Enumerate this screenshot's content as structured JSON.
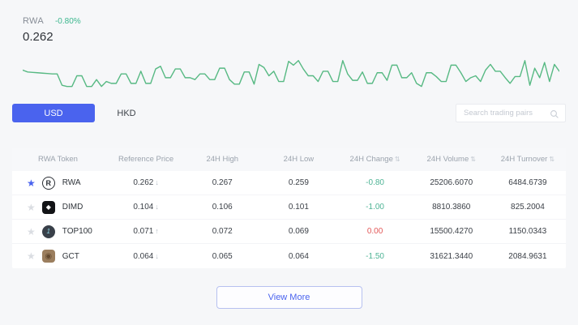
{
  "header": {
    "symbol": "RWA",
    "change_percent": "-0.80%",
    "price": "0.262"
  },
  "chart": {
    "type": "line",
    "color": "#57b983",
    "values": [
      65,
      60,
      59,
      58,
      57,
      56,
      55,
      55,
      25,
      22,
      22,
      50,
      50,
      22,
      22,
      40,
      22,
      35,
      30,
      30,
      55,
      55,
      30,
      30,
      62,
      30,
      30,
      68,
      75,
      45,
      45,
      68,
      68,
      45,
      45,
      40,
      55,
      55,
      40,
      40,
      70,
      70,
      40,
      28,
      28,
      60,
      60,
      28,
      80,
      72,
      50,
      62,
      35,
      35,
      88,
      78,
      90,
      68,
      50,
      50,
      35,
      62,
      62,
      35,
      35,
      90,
      55,
      38,
      38,
      60,
      30,
      30,
      58,
      58,
      38,
      78,
      78,
      45,
      45,
      58,
      30,
      22,
      58,
      58,
      48,
      35,
      35,
      78,
      78,
      58,
      35,
      45,
      50,
      35,
      65,
      80,
      62,
      62,
      45,
      30,
      48,
      48,
      90,
      25,
      70,
      45,
      85,
      35,
      80,
      62
    ]
  },
  "currency_tabs": [
    {
      "label": "USD",
      "active": true
    },
    {
      "label": "HKD",
      "active": false
    }
  ],
  "search": {
    "placeholder": "Search trading pairs"
  },
  "icons": {
    "star_glyph": "★",
    "sort_glyph": "⇅",
    "rwa_glyph": "R",
    "dimd_glyph": "◆",
    "top100_glyph": "1",
    "gct_glyph": "◉"
  },
  "table": {
    "columns": [
      {
        "label": "RWA Token",
        "sortable": false
      },
      {
        "label": "Reference Price",
        "sortable": false
      },
      {
        "label": "24H High",
        "sortable": false
      },
      {
        "label": "24H Low",
        "sortable": false
      },
      {
        "label": "24H Change",
        "sortable": true
      },
      {
        "label": "24H Volume",
        "sortable": true
      },
      {
        "label": "24H Turnover",
        "sortable": true
      }
    ],
    "rows": [
      {
        "token": "RWA",
        "icon": "registered-r-circle",
        "favorite": true,
        "star_color": "#4a63ee",
        "price": "0.262",
        "price_arrow": "↓",
        "arrow_color": "#b3bac3",
        "high": "0.267",
        "low": "0.259",
        "change": "-0.80",
        "change_color": "#4db394",
        "volume": "25206.6070",
        "turnover": "6484.6739"
      },
      {
        "token": "DIMD",
        "icon": "black-diamond",
        "favorite": false,
        "star_color": "#dadde2",
        "price": "0.104",
        "price_arrow": "↓",
        "arrow_color": "#b3bac3",
        "high": "0.106",
        "low": "0.101",
        "change": "-1.00",
        "change_color": "#4db394",
        "volume": "8810.3860",
        "turnover": "825.2004"
      },
      {
        "token": "TOP100",
        "icon": "dark-coin",
        "favorite": false,
        "star_color": "#dadde2",
        "price": "0.071",
        "price_arrow": "↑",
        "arrow_color": "#b3bac3",
        "high": "0.072",
        "low": "0.069",
        "change": "0.00",
        "change_color": "#e25757",
        "volume": "15500.4270",
        "turnover": "1150.0343"
      },
      {
        "token": "GCT",
        "icon": "brown-gem",
        "favorite": false,
        "star_color": "#dadde2",
        "price": "0.064",
        "price_arrow": "↓",
        "arrow_color": "#b3bac3",
        "high": "0.065",
        "low": "0.064",
        "change": "-1.50",
        "change_color": "#4db394",
        "volume": "31621.3440",
        "turnover": "2084.9631"
      }
    ]
  },
  "footer": {
    "view_more_label": "View More"
  }
}
